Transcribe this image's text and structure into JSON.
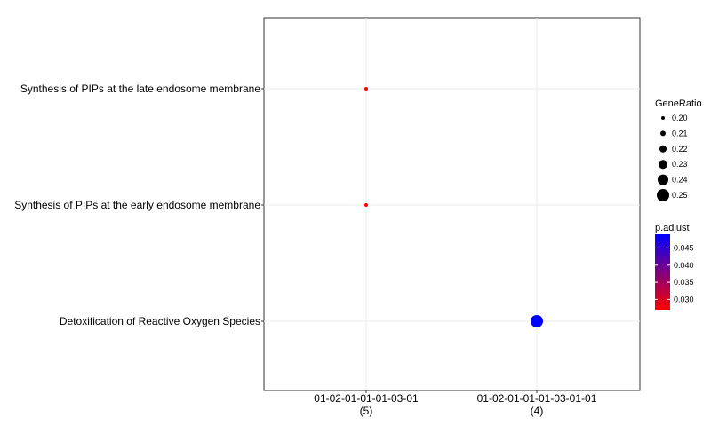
{
  "chart_data": {
    "type": "scatter",
    "title": "",
    "xlabel": "",
    "ylabel": "",
    "categories_x": [
      {
        "line1": "01-02-01-01-01-03-01",
        "line2": "(5)"
      },
      {
        "line1": "01-02-01-01-01-03-01-01",
        "line2": "(4)"
      }
    ],
    "categories_y": [
      "Synthesis of PIPs at the late endosome membrane",
      "Synthesis of PIPs at the early endosome membrane",
      "Detoxification of Reactive Oxygen Species"
    ],
    "points": [
      {
        "x": "01-02-01-01-01-03-01",
        "y": "Synthesis of PIPs at the late endosome membrane",
        "gene_ratio": 0.2,
        "p_adjust": 0.027,
        "color": "#ff0000"
      },
      {
        "x": "01-02-01-01-01-03-01",
        "y": "Synthesis of PIPs at the early endosome membrane",
        "gene_ratio": 0.2,
        "p_adjust": 0.027,
        "color": "#ff0000"
      },
      {
        "x": "01-02-01-01-01-03-01-01",
        "y": "Detoxification of Reactive Oxygen Species",
        "gene_ratio": 0.25,
        "p_adjust": 0.048,
        "color": "#0000ff"
      }
    ],
    "size_legend": {
      "title": "GeneRatio",
      "entries": [
        {
          "label": "0.20",
          "value": 0.2
        },
        {
          "label": "0.21",
          "value": 0.21
        },
        {
          "label": "0.22",
          "value": 0.22
        },
        {
          "label": "0.23",
          "value": 0.23
        },
        {
          "label": "0.24",
          "value": 0.24
        },
        {
          "label": "0.25",
          "value": 0.25
        }
      ]
    },
    "color_legend": {
      "title": "p.adjust",
      "low_color": "#ff0000",
      "high_color": "#0000ff",
      "range": [
        0.027,
        0.049
      ],
      "ticks": [
        {
          "label": "0.030",
          "value": 0.03
        },
        {
          "label": "0.035",
          "value": 0.035
        },
        {
          "label": "0.040",
          "value": 0.04
        },
        {
          "label": "0.045",
          "value": 0.045
        }
      ]
    },
    "grid": true,
    "legend_position": "right"
  }
}
